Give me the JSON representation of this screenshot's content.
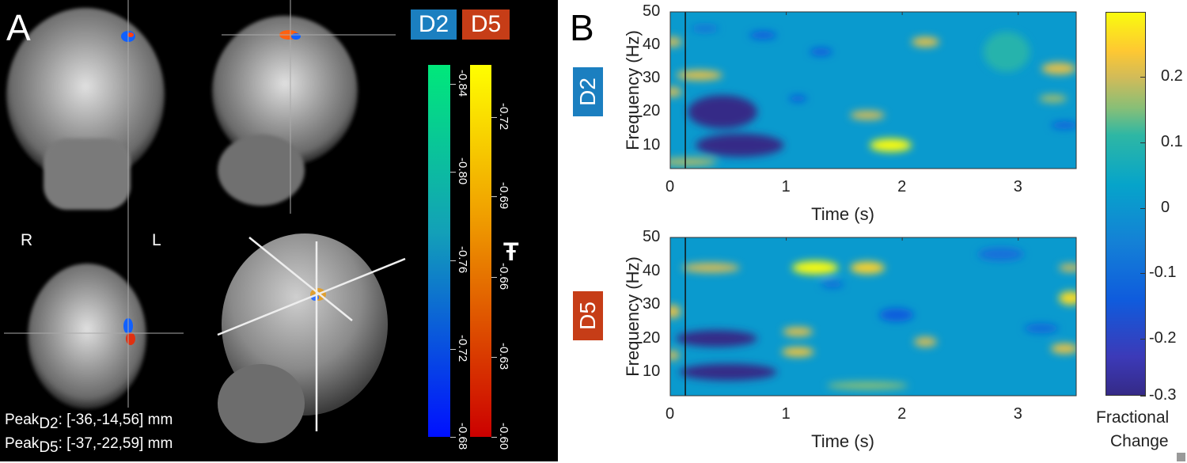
{
  "panel_a": {
    "letter": "A",
    "badges": [
      {
        "label": "D2",
        "color": "#1b7fc0"
      },
      {
        "label": "D5",
        "color": "#c63d17"
      }
    ],
    "side_labels": {
      "right": "R",
      "left": "L"
    },
    "colorbars": [
      {
        "series": "D2",
        "ticks": [
          "-0.84",
          "-0.80",
          "-0.76",
          "-0.72",
          "-0.68"
        ],
        "colors": [
          "#00e87a",
          "#0010ff"
        ]
      },
      {
        "series": "D5",
        "ticks": [
          "-0.72",
          "-0.69",
          "-0.66",
          "-0.63",
          "-0.60"
        ],
        "colors": [
          "#ffff00",
          "#cc0000"
        ]
      }
    ],
    "colorbar_label": "Ŧ",
    "peaks": [
      {
        "name": "Peak",
        "sub": "D2",
        "value": ": [-36,-14,56] mm"
      },
      {
        "name": "Peak",
        "sub": "D5",
        "value": ": [-37,-22,59] mm"
      }
    ]
  },
  "panel_b": {
    "letter": "B",
    "colorbar": {
      "ticks": [
        "0.2",
        "0.1",
        "0",
        "-0.1",
        "-0.2",
        "-0.3"
      ],
      "label_line1": "Fractional",
      "label_line2": "Change",
      "range": [
        -0.3,
        0.3
      ],
      "colormap": "parula"
    }
  },
  "chart_data": [
    {
      "type": "heatmap",
      "badge": "D2",
      "badge_color": "#1b7fc0",
      "xlabel": "Time (s)",
      "ylabel": "Frequency (Hz)",
      "xticks": [
        "0",
        "1",
        "2",
        "3"
      ],
      "yticks": [
        "50",
        "40",
        "30",
        "20",
        "10"
      ],
      "xlim": [
        0,
        3.5
      ],
      "ylim": [
        3,
        50
      ],
      "event_marker_time": 0.13,
      "features": [
        {
          "t": 0.45,
          "f": 20,
          "dt": 0.3,
          "df": 5,
          "value": -0.3
        },
        {
          "t": 0.6,
          "f": 10,
          "dt": 0.38,
          "df": 3.5,
          "value": -0.3
        },
        {
          "t": 1.9,
          "f": 10,
          "dt": 0.18,
          "df": 2,
          "value": 0.3
        },
        {
          "t": 2.2,
          "f": 41,
          "dt": 0.12,
          "df": 1.5,
          "value": 0.22
        },
        {
          "t": 0.25,
          "f": 31,
          "dt": 0.2,
          "df": 1.5,
          "value": 0.22
        },
        {
          "t": 3.35,
          "f": 33,
          "dt": 0.15,
          "df": 1.8,
          "value": 0.22
        },
        {
          "t": 1.7,
          "f": 19,
          "dt": 0.15,
          "df": 1.4,
          "value": 0.2
        },
        {
          "t": 0.02,
          "f": 41,
          "dt": 0.08,
          "df": 1.5,
          "value": 0.2
        },
        {
          "t": 0.02,
          "f": 26,
          "dt": 0.08,
          "df": 1.5,
          "value": 0.2
        },
        {
          "t": 3.3,
          "f": 24,
          "dt": 0.12,
          "df": 1.2,
          "value": 0.17
        },
        {
          "t": 0.15,
          "f": 5,
          "dt": 0.25,
          "df": 1.2,
          "value": 0.18
        },
        {
          "t": 0.8,
          "f": 43,
          "dt": 0.12,
          "df": 1.2,
          "value": -0.2
        },
        {
          "t": 1.3,
          "f": 38,
          "dt": 0.1,
          "df": 1.2,
          "value": -0.2
        },
        {
          "t": 1.1,
          "f": 24,
          "dt": 0.08,
          "df": 1,
          "value": -0.2
        },
        {
          "t": 3.4,
          "f": 16,
          "dt": 0.12,
          "df": 1.2,
          "value": -0.18
        },
        {
          "t": 0.3,
          "f": 45,
          "dt": 0.12,
          "df": 1,
          "value": -0.15
        },
        {
          "t": 2.9,
          "f": 38,
          "dt": 0.2,
          "df": 6,
          "value": 0.08
        }
      ]
    },
    {
      "type": "heatmap",
      "badge": "D5",
      "badge_color": "#c63d17",
      "xlabel": "Time (s)",
      "ylabel": "Frequency (Hz)",
      "xticks": [
        "0",
        "1",
        "2",
        "3"
      ],
      "yticks": [
        "50",
        "40",
        "30",
        "20",
        "10"
      ],
      "xlim": [
        0,
        3.5
      ],
      "ylim": [
        3,
        50
      ],
      "event_marker_time": 0.13,
      "features": [
        {
          "t": 0.4,
          "f": 20,
          "dt": 0.35,
          "df": 2.5,
          "value": -0.3
        },
        {
          "t": 0.5,
          "f": 10,
          "dt": 0.42,
          "df": 2.5,
          "value": -0.3
        },
        {
          "t": 1.25,
          "f": 41,
          "dt": 0.2,
          "df": 2,
          "value": 0.3
        },
        {
          "t": 1.7,
          "f": 41,
          "dt": 0.15,
          "df": 1.8,
          "value": 0.26
        },
        {
          "t": 0.35,
          "f": 41,
          "dt": 0.25,
          "df": 1.5,
          "value": 0.2
        },
        {
          "t": 1.1,
          "f": 22,
          "dt": 0.13,
          "df": 1.4,
          "value": 0.22
        },
        {
          "t": 1.1,
          "f": 16,
          "dt": 0.14,
          "df": 1.4,
          "value": 0.24
        },
        {
          "t": 2.2,
          "f": 19,
          "dt": 0.1,
          "df": 1.5,
          "value": 0.2
        },
        {
          "t": 3.45,
          "f": 32,
          "dt": 0.1,
          "df": 2,
          "value": 0.27
        },
        {
          "t": 3.4,
          "f": 17,
          "dt": 0.12,
          "df": 1.5,
          "value": 0.23
        },
        {
          "t": 3.45,
          "f": 41,
          "dt": 0.1,
          "df": 1.2,
          "value": 0.2
        },
        {
          "t": 0.02,
          "f": 28,
          "dt": 0.07,
          "df": 2,
          "value": 0.22
        },
        {
          "t": 0.02,
          "f": 15,
          "dt": 0.06,
          "df": 1.5,
          "value": 0.2
        },
        {
          "t": 1.95,
          "f": 27,
          "dt": 0.15,
          "df": 2,
          "value": -0.2
        },
        {
          "t": 1.4,
          "f": 36,
          "dt": 0.1,
          "df": 1,
          "value": -0.17
        },
        {
          "t": 3.2,
          "f": 23,
          "dt": 0.15,
          "df": 1.5,
          "value": -0.16
        },
        {
          "t": 2.85,
          "f": 45,
          "dt": 0.2,
          "df": 2,
          "value": -0.15
        },
        {
          "t": 1.7,
          "f": 6,
          "dt": 0.35,
          "df": 1.2,
          "value": 0.15
        }
      ]
    }
  ]
}
